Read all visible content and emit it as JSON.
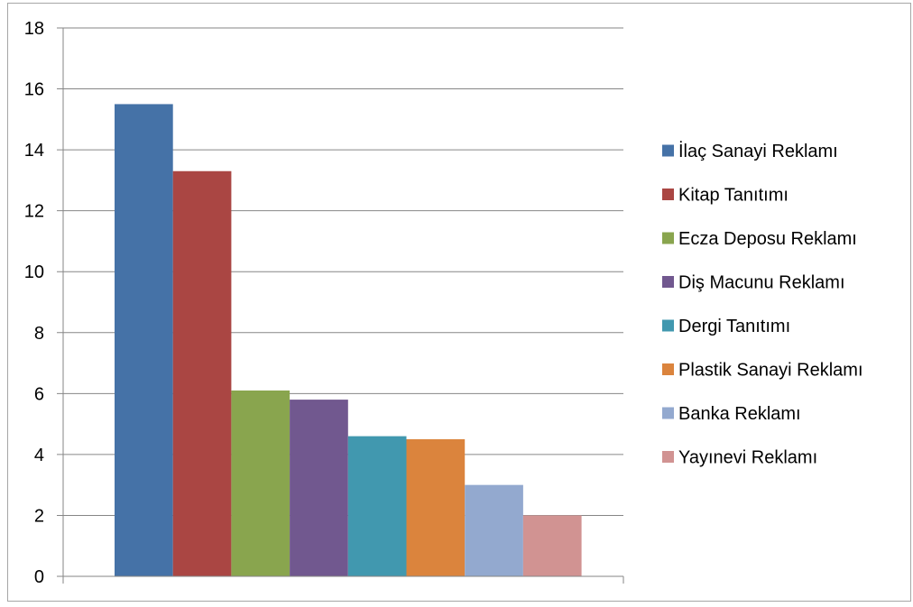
{
  "chart_data": {
    "type": "bar",
    "title": "",
    "xlabel": "",
    "ylabel": "",
    "ylim": [
      0,
      18
    ],
    "yticks": [
      0,
      2,
      4,
      6,
      8,
      10,
      12,
      14,
      16,
      18
    ],
    "grid": true,
    "legend_position": "right",
    "series": [
      {
        "name": "İlaç Sanayi Reklamı",
        "values": [
          15.5
        ],
        "color": "#4572A7"
      },
      {
        "name": "Kitap Tanıtımı",
        "values": [
          13.3
        ],
        "color": "#AA4643"
      },
      {
        "name": "Ecza Deposu Reklamı",
        "values": [
          6.1
        ],
        "color": "#89A54E"
      },
      {
        "name": "Diş Macunu Reklamı",
        "values": [
          5.8
        ],
        "color": "#71588F"
      },
      {
        "name": "Dergi Tanıtımı",
        "values": [
          4.6
        ],
        "color": "#4198AF"
      },
      {
        "name": "Plastik Sanayi Reklamı",
        "values": [
          4.5
        ],
        "color": "#DB843D"
      },
      {
        "name": "Banka Reklamı",
        "values": [
          3.0
        ],
        "color": "#93A9CF"
      },
      {
        "name": "Yayınevi Reklamı",
        "values": [
          2.0
        ],
        "color": "#D19392"
      }
    ]
  }
}
